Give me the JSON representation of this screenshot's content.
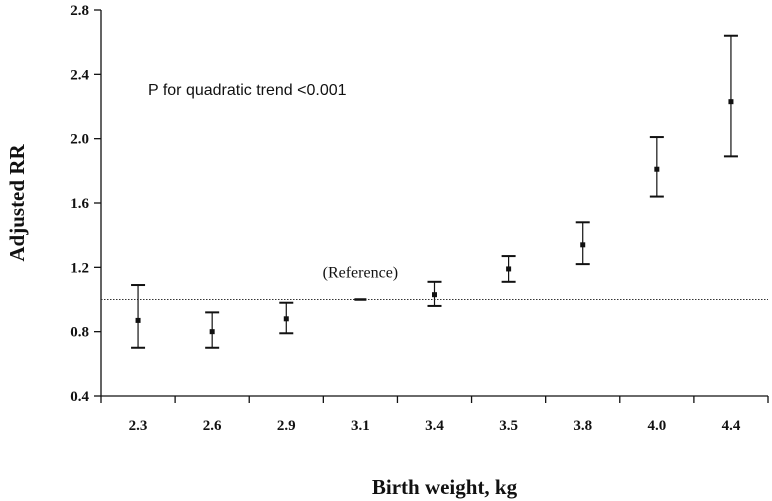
{
  "chart_data": {
    "type": "scatter",
    "title": "",
    "xlabel": "Birth weight, kg",
    "ylabel": "Adjusted RR",
    "categories": [
      "2.3",
      "2.6",
      "2.9",
      "3.1",
      "3.4",
      "3.5",
      "3.8",
      "4.0",
      "4.4"
    ],
    "values": [
      0.87,
      0.8,
      0.88,
      1.0,
      1.03,
      1.19,
      1.34,
      1.81,
      2.23
    ],
    "lower": [
      0.7,
      0.7,
      0.79,
      1.0,
      0.96,
      1.11,
      1.22,
      1.64,
      1.89
    ],
    "upper": [
      1.09,
      0.92,
      0.98,
      1.0,
      1.11,
      1.27,
      1.48,
      2.01,
      2.64
    ],
    "yticks": [
      "0.4",
      "0.8",
      "1.2",
      "1.6",
      "2.0",
      "2.4",
      "2.8"
    ],
    "ylim": [
      0.4,
      2.8
    ],
    "reference_line": 1.0,
    "reference_label": "(Reference)",
    "annotation": "P for quadratic trend <0.001",
    "grid": false,
    "colors": {
      "marks": "#111111",
      "reference_line": "#333333"
    }
  }
}
